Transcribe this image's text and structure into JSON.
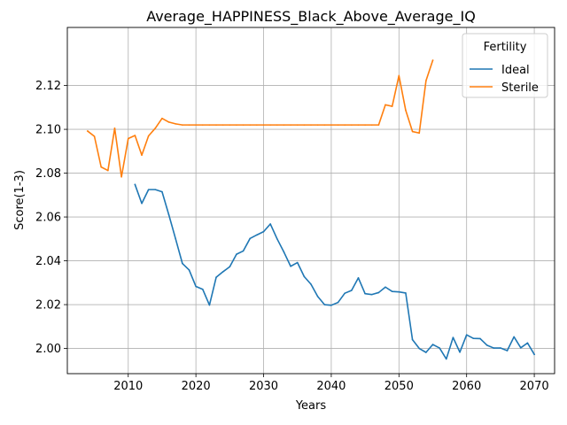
{
  "chart_data": {
    "type": "line",
    "title": "Average_HAPPINESS_Black_Above_Average_IQ",
    "xlabel": "Years",
    "ylabel": "Score(1-3)",
    "xlim": [
      2001,
      2073
    ],
    "ylim": [
      1.9885,
      2.1465
    ],
    "xticks": [
      2010,
      2020,
      2030,
      2040,
      2050,
      2060,
      2070
    ],
    "yticks": [
      2.0,
      2.02,
      2.04,
      2.06,
      2.08,
      2.1,
      2.12
    ],
    "ytick_labels": [
      "2.00",
      "2.02",
      "2.04",
      "2.06",
      "2.08",
      "2.10",
      "2.12"
    ],
    "grid": true,
    "legend": {
      "title": "Fertility",
      "placement": "top-right"
    },
    "series": [
      {
        "name": "Ideal",
        "color": "#1f77b4",
        "x": [
          2011,
          2012,
          2013,
          2014,
          2015,
          2016,
          2017,
          2018,
          2019,
          2020,
          2021,
          2022,
          2023,
          2024,
          2025,
          2026,
          2027,
          2028,
          2029,
          2030,
          2031,
          2032,
          2033,
          2034,
          2035,
          2036,
          2037,
          2038,
          2039,
          2040,
          2041,
          2042,
          2043,
          2044,
          2045,
          2046,
          2047,
          2048,
          2049,
          2050,
          2051,
          2052,
          2053,
          2054,
          2055,
          2056,
          2057,
          2058,
          2059,
          2060,
          2061,
          2062,
          2063,
          2064,
          2065,
          2066,
          2067,
          2068,
          2069,
          2070
        ],
        "y": [
          2.0748,
          2.0662,
          2.0725,
          2.0725,
          2.0715,
          2.061,
          2.05,
          2.0388,
          2.0358,
          2.0283,
          2.027,
          2.0198,
          2.0325,
          2.035,
          2.0373,
          2.043,
          2.0445,
          2.0502,
          2.0518,
          2.0533,
          2.0568,
          2.05,
          2.044,
          2.0375,
          2.0392,
          2.0328,
          2.0293,
          2.0237,
          2.02,
          2.0197,
          2.021,
          2.0252,
          2.0265,
          2.0322,
          2.025,
          2.0246,
          2.0255,
          2.028,
          2.026,
          2.0258,
          2.0253,
          2.004,
          2.0,
          1.9982,
          2.0018,
          2.0002,
          1.9952,
          2.005,
          1.9983,
          2.0062,
          2.0046,
          2.0045,
          2.0015,
          2.0002,
          2.0002,
          1.999,
          2.0053,
          2.0003,
          2.0025,
          1.9973
        ]
      },
      {
        "name": "Sterile",
        "color": "#ff7f0e",
        "x": [
          2004,
          2005,
          2006,
          2007,
          2008,
          2009,
          2010,
          2011,
          2012,
          2013,
          2014,
          2015,
          2016,
          2017,
          2018,
          2019,
          2020,
          2021,
          2022,
          2023,
          2024,
          2025,
          2026,
          2027,
          2028,
          2029,
          2030,
          2031,
          2032,
          2033,
          2034,
          2035,
          2036,
          2037,
          2038,
          2039,
          2040,
          2041,
          2042,
          2043,
          2044,
          2045,
          2046,
          2047,
          2048,
          2049,
          2050,
          2051,
          2052,
          2053,
          2054,
          2055
        ],
        "y": [
          2.0992,
          2.0968,
          2.0828,
          2.0812,
          2.1005,
          2.0783,
          2.0958,
          2.0972,
          2.0882,
          2.097,
          2.1005,
          2.105,
          2.1033,
          2.1025,
          2.102,
          2.102,
          2.102,
          2.102,
          2.102,
          2.102,
          2.102,
          2.102,
          2.102,
          2.102,
          2.102,
          2.102,
          2.102,
          2.102,
          2.102,
          2.102,
          2.102,
          2.102,
          2.102,
          2.102,
          2.102,
          2.102,
          2.102,
          2.102,
          2.102,
          2.102,
          2.102,
          2.102,
          2.102,
          2.102,
          2.1112,
          2.1105,
          2.1245,
          2.1087,
          2.099,
          2.0983,
          2.1222,
          2.1315
        ]
      }
    ]
  }
}
